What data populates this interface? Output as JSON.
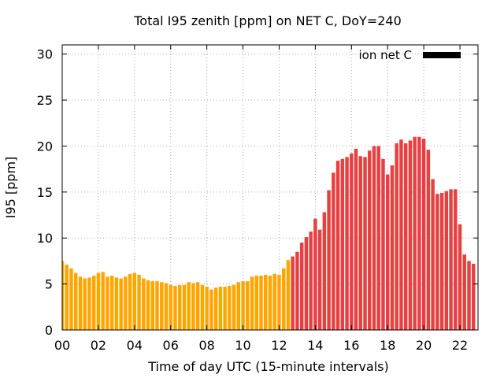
{
  "chart_data": {
    "type": "bar",
    "title": "Total I95 zenith [ppm] on NET C, DoY=240",
    "xlabel": "Time of day UTC (15-minute intervals)",
    "ylabel": "I95 [ppm]",
    "xlim": [
      0,
      23
    ],
    "ylim": [
      0,
      31
    ],
    "x_interval_hours": 0.25,
    "x_ticks": [
      0,
      2,
      4,
      6,
      8,
      10,
      12,
      14,
      16,
      18,
      20,
      22
    ],
    "x_tick_labels": [
      "00",
      "02",
      "04",
      "06",
      "08",
      "10",
      "12",
      "14",
      "16",
      "18",
      "20",
      "22"
    ],
    "y_ticks": [
      0,
      5,
      10,
      15,
      20,
      25,
      30
    ],
    "y_tick_labels": [
      "0",
      "5",
      "10",
      "15",
      "20",
      "25",
      "30"
    ],
    "grid": true,
    "legend": {
      "placement": "top-right",
      "entries": [
        {
          "label": "ion net C",
          "color": "#000000"
        }
      ]
    },
    "colors": {
      "low": "#ffa500",
      "high": "#e84040",
      "grid": "#aaaaaa"
    },
    "color_switch_hour": 12.75,
    "values": [
      7.5,
      7.1,
      6.7,
      6.2,
      5.8,
      5.6,
      5.7,
      5.9,
      6.2,
      6.3,
      5.8,
      5.9,
      5.7,
      5.6,
      5.8,
      6.1,
      6.2,
      6.0,
      5.6,
      5.4,
      5.3,
      5.3,
      5.2,
      5.1,
      4.9,
      4.8,
      4.9,
      4.9,
      5.2,
      5.1,
      5.2,
      4.9,
      4.7,
      4.4,
      4.6,
      4.7,
      4.7,
      4.8,
      4.9,
      5.2,
      5.3,
      5.3,
      5.8,
      5.9,
      5.9,
      6.0,
      5.9,
      6.1,
      6.0,
      6.7,
      7.6,
      8.0,
      8.5,
      9.5,
      10.1,
      10.7,
      12.1,
      10.9,
      12.8,
      15.2,
      17.1,
      18.4,
      18.6,
      18.8,
      19.2,
      19.7,
      18.9,
      18.8,
      19.5,
      20.0,
      20.0,
      18.6,
      16.9,
      17.9,
      20.3,
      20.7,
      20.3,
      20.6,
      21.0,
      21.0,
      20.8,
      19.6,
      16.4,
      14.8,
      14.9,
      15.1,
      15.3,
      15.3,
      11.5,
      8.2,
      7.5,
      7.2
    ]
  }
}
